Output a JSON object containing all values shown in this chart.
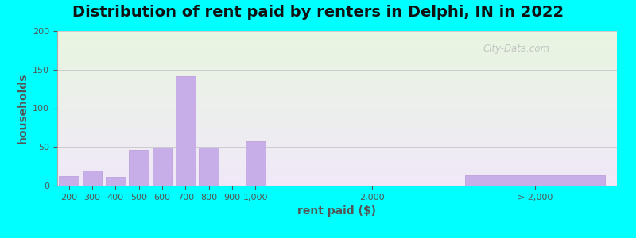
{
  "title": "Distribution of rent paid by renters in Delphi, IN in 2022",
  "xlabel": "rent paid ($)",
  "ylabel": "households",
  "bar_color": "#c8aee8",
  "bar_edge_color": "#b898d8",
  "background_outer": "#00ffff",
  "background_top": "#e8f5e0",
  "background_bottom": "#f0e8f8",
  "ylim": [
    0,
    200
  ],
  "yticks": [
    0,
    50,
    100,
    150,
    200
  ],
  "categories": [
    "200",
    "300",
    "400",
    "500",
    "600",
    "700",
    "800",
    "900",
    "1,000",
    "2,000",
    "> 2,000"
  ],
  "positions": [
    0,
    1,
    2,
    3,
    4,
    5,
    6,
    7,
    8,
    13,
    20
  ],
  "values": [
    12,
    19,
    11,
    46,
    49,
    142,
    49,
    0,
    57,
    0,
    13
  ],
  "bar_widths": [
    0.85,
    0.85,
    0.85,
    0.85,
    0.85,
    0.85,
    0.85,
    0.85,
    0.85,
    0.85,
    6.0
  ],
  "tick_positions": [
    0,
    1,
    2,
    3,
    4,
    5,
    6,
    7,
    8,
    13,
    20
  ],
  "gridcolor": "#cccccc",
  "title_fontsize": 14,
  "axis_label_fontsize": 10,
  "tick_fontsize": 8,
  "watermark": "City-Data.com"
}
